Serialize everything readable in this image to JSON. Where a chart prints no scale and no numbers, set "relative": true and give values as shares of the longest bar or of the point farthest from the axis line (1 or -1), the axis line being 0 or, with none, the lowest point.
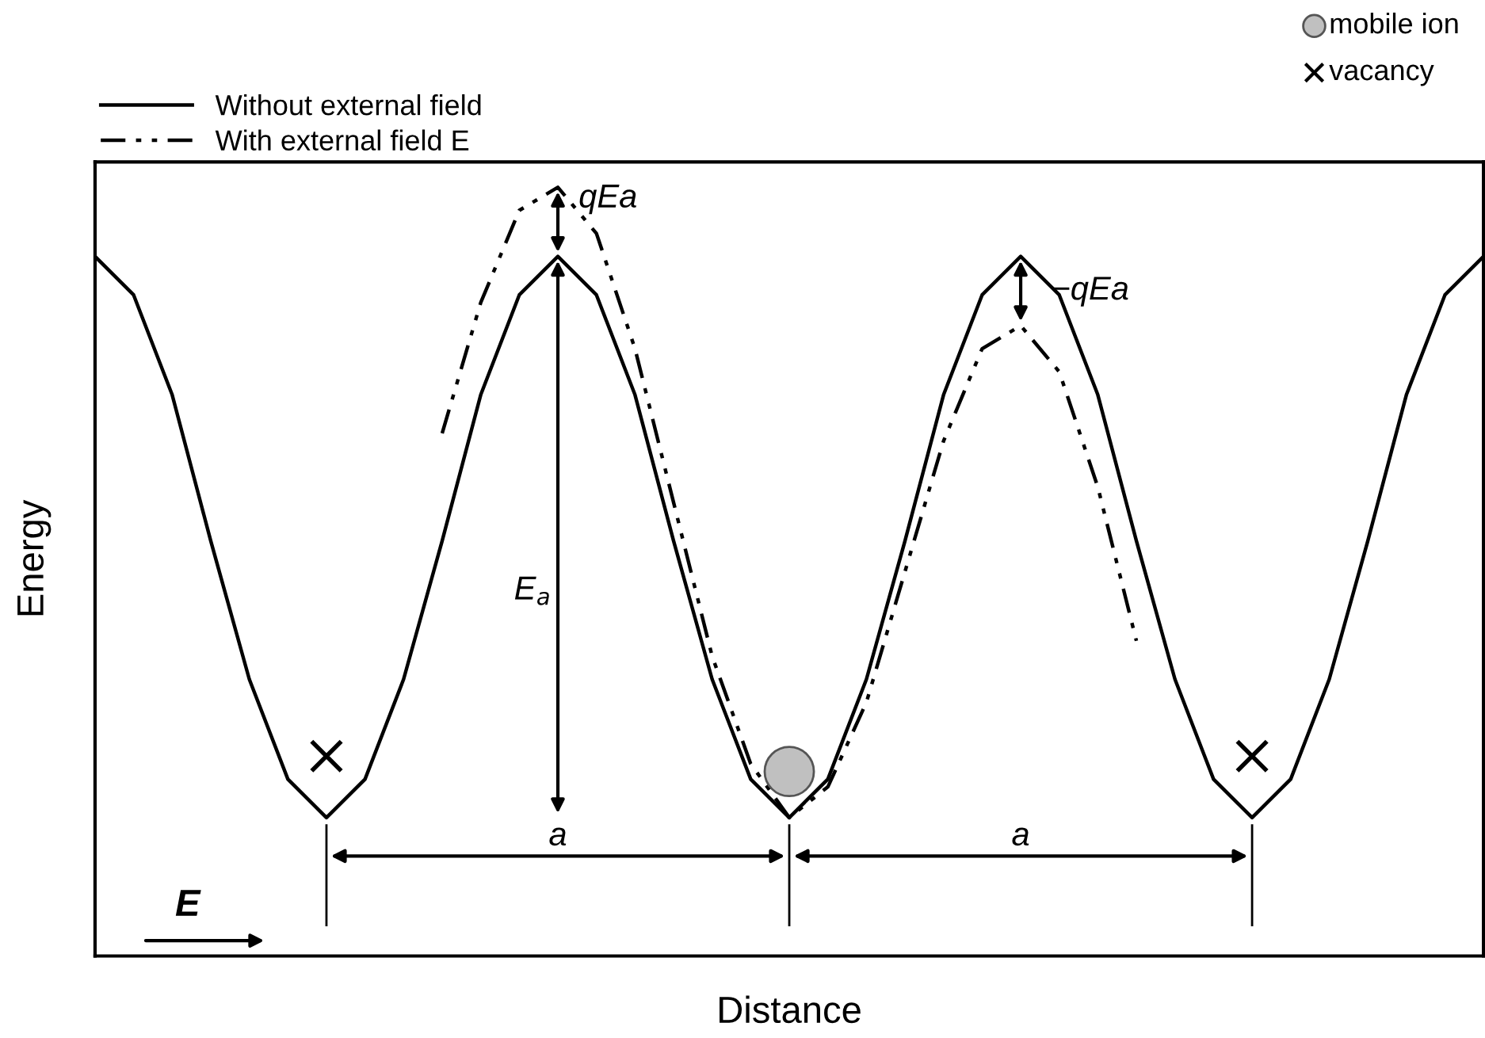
{
  "chart_data": {
    "type": "line",
    "relative": true,
    "xlabel": "Distance",
    "ylabel": "Energy",
    "legend": "top left",
    "categories": [
      null,
      null,
      null,
      null,
      null,
      null,
      null,
      null,
      null,
      null,
      null,
      null,
      null,
      null,
      null,
      null,
      null,
      null,
      null,
      null,
      null,
      null,
      null,
      null,
      null,
      null,
      null,
      null,
      null,
      null,
      null,
      null,
      null,
      null,
      null,
      null,
      null
    ],
    "series": [
      {
        "name": "Without external field",
        "color": "#000000",
        "line_style": "solid",
        "values": [
          0.91,
          0.86,
          0.73,
          0.54,
          0.36,
          0.23,
          0.18,
          0.23,
          0.36,
          0.54,
          0.73,
          0.86,
          0.91,
          0.86,
          0.73,
          0.54,
          0.36,
          0.23,
          0.18,
          0.23,
          0.36,
          0.54,
          0.73,
          0.86,
          0.91,
          0.86,
          0.73,
          0.54,
          0.36,
          0.23,
          0.18,
          0.23,
          0.36,
          0.54,
          0.73,
          0.86,
          0.91
        ]
      },
      {
        "name": "With external field E",
        "color": "#000000",
        "line_style": "dashed",
        "values": [
          null,
          null,
          null,
          null,
          null,
          null,
          null,
          null,
          null,
          0.68,
          0.85,
          0.97,
          1.0,
          0.94,
          0.79,
          0.59,
          0.39,
          0.25,
          0.18,
          0.22,
          0.33,
          0.5,
          0.67,
          0.79,
          0.82,
          0.76,
          0.61,
          0.41,
          null,
          null,
          null,
          null,
          null,
          null,
          null,
          null,
          null
        ]
      }
    ],
    "annotations": [
      "qEa",
      "−qEa",
      "E$_{a}$",
      "a",
      "a",
      "E",
      "mobile ion",
      "vacancy"
    ]
  }
}
